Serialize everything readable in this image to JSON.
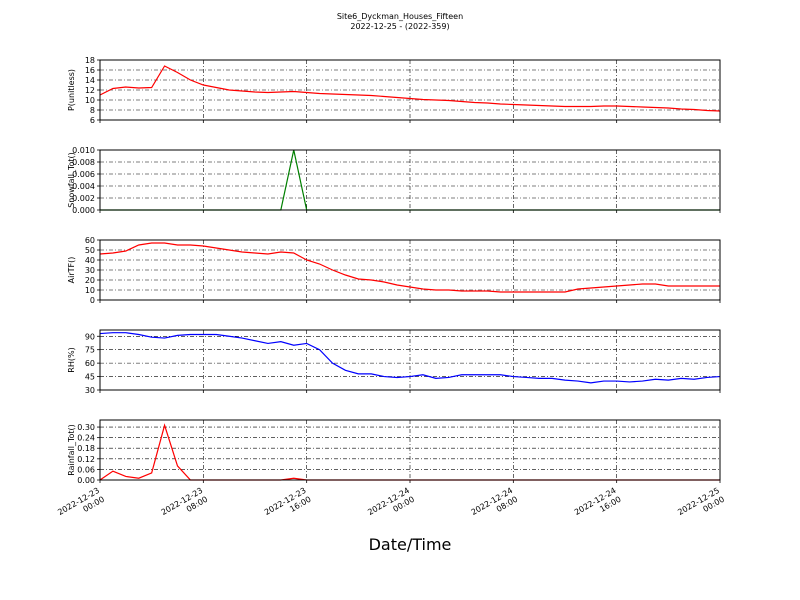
{
  "chart_data": [
    {
      "type": "line",
      "title": "Site6_Dyckman_Houses_Fifteen",
      "subtitle": "2022-12-25 - (2022-359)",
      "ylabel": "P(unitless)",
      "color": "#ff0000",
      "grid": true,
      "x": [
        "2022-12-23 00:00",
        "2022-12-23 01:00",
        "2022-12-23 02:00",
        "2022-12-23 03:00",
        "2022-12-23 04:00",
        "2022-12-23 05:00",
        "2022-12-23 06:00",
        "2022-12-23 07:00",
        "2022-12-23 08:00",
        "2022-12-23 09:00",
        "2022-12-23 10:00",
        "2022-12-23 11:00",
        "2022-12-23 12:00",
        "2022-12-23 13:00",
        "2022-12-23 14:00",
        "2022-12-23 15:00",
        "2022-12-23 16:00",
        "2022-12-23 17:00",
        "2022-12-23 18:00",
        "2022-12-23 19:00",
        "2022-12-23 20:00",
        "2022-12-23 21:00",
        "2022-12-23 22:00",
        "2022-12-23 23:00",
        "2022-12-24 00:00",
        "2022-12-24 01:00",
        "2022-12-24 02:00",
        "2022-12-24 03:00",
        "2022-12-24 04:00",
        "2022-12-24 05:00",
        "2022-12-24 06:00",
        "2022-12-24 07:00",
        "2022-12-24 08:00",
        "2022-12-24 09:00",
        "2022-12-24 10:00",
        "2022-12-24 11:00",
        "2022-12-24 12:00",
        "2022-12-24 13:00",
        "2022-12-24 14:00",
        "2022-12-24 15:00",
        "2022-12-24 16:00",
        "2022-12-24 17:00",
        "2022-12-24 18:00",
        "2022-12-24 19:00",
        "2022-12-24 20:00",
        "2022-12-24 21:00",
        "2022-12-24 22:00",
        "2022-12-24 23:00",
        "2022-12-25 00:00"
      ],
      "values": [
        11,
        12.3,
        12.6,
        12.4,
        12.5,
        16.8,
        15.5,
        14,
        13,
        12.5,
        12,
        11.8,
        11.6,
        11.5,
        11.6,
        11.7,
        11.5,
        11.3,
        11.2,
        11.1,
        11,
        10.9,
        10.7,
        10.5,
        10.3,
        10.1,
        10,
        9.9,
        9.7,
        9.5,
        9.4,
        9.2,
        9.1,
        9,
        8.9,
        8.8,
        8.7,
        8.7,
        8.7,
        8.8,
        8.8,
        8.7,
        8.6,
        8.5,
        8.4,
        8.2,
        8.1,
        7.9,
        7.8
      ],
      "xlim": [
        "2022-12-23 00:00",
        "2022-12-25 00:00"
      ],
      "xticks": [
        "2022-12-23 00:00",
        "2022-12-23 08:00",
        "2022-12-23 16:00",
        "2022-12-24 00:00",
        "2022-12-24 08:00",
        "2022-12-24 16:00",
        "2022-12-25 00:00"
      ],
      "ylim": [
        6,
        18
      ],
      "yticks": [
        6,
        8,
        10,
        12,
        14,
        16,
        18
      ]
    },
    {
      "type": "line",
      "ylabel": "Snowfall_Tot()",
      "color": "#008000",
      "grid": true,
      "x": [
        "2022-12-23 00:00",
        "2022-12-23 01:00",
        "2022-12-23 02:00",
        "2022-12-23 03:00",
        "2022-12-23 04:00",
        "2022-12-23 05:00",
        "2022-12-23 06:00",
        "2022-12-23 07:00",
        "2022-12-23 08:00",
        "2022-12-23 09:00",
        "2022-12-23 10:00",
        "2022-12-23 11:00",
        "2022-12-23 12:00",
        "2022-12-23 13:00",
        "2022-12-23 14:00",
        "2022-12-23 15:00",
        "2022-12-23 16:00",
        "2022-12-23 17:00",
        "2022-12-23 18:00",
        "2022-12-23 19:00",
        "2022-12-23 20:00",
        "2022-12-23 21:00",
        "2022-12-23 22:00",
        "2022-12-23 23:00",
        "2022-12-24 00:00",
        "2022-12-24 01:00",
        "2022-12-24 02:00",
        "2022-12-24 03:00",
        "2022-12-24 04:00",
        "2022-12-24 05:00",
        "2022-12-24 06:00",
        "2022-12-24 07:00",
        "2022-12-24 08:00",
        "2022-12-24 09:00",
        "2022-12-24 10:00",
        "2022-12-24 11:00",
        "2022-12-24 12:00",
        "2022-12-24 13:00",
        "2022-12-24 14:00",
        "2022-12-24 15:00",
        "2022-12-24 16:00",
        "2022-12-24 17:00",
        "2022-12-24 18:00",
        "2022-12-24 19:00",
        "2022-12-24 20:00",
        "2022-12-24 21:00",
        "2022-12-24 22:00",
        "2022-12-24 23:00",
        "2022-12-25 00:00"
      ],
      "values": [
        0,
        0,
        0,
        0,
        0,
        0,
        0,
        0,
        0,
        0,
        0,
        0,
        0,
        0,
        0,
        0.01,
        0,
        0,
        0,
        0,
        0,
        0,
        0,
        0,
        0,
        0,
        0,
        0,
        0,
        0,
        0,
        0,
        0,
        0,
        0,
        0,
        0,
        0,
        0,
        0,
        0,
        0,
        0,
        0,
        0,
        0,
        0,
        0,
        0
      ],
      "xlim": [
        "2022-12-23 00:00",
        "2022-12-25 00:00"
      ],
      "xticks": [
        "2022-12-23 00:00",
        "2022-12-23 08:00",
        "2022-12-23 16:00",
        "2022-12-24 00:00",
        "2022-12-24 08:00",
        "2022-12-24 16:00",
        "2022-12-25 00:00"
      ],
      "ylim": [
        0,
        0.01
      ],
      "yticks": [
        {
          "value": 0,
          "label": "0.000"
        },
        {
          "value": 0.002,
          "label": "0.002"
        },
        {
          "value": 0.004,
          "label": "0.004"
        },
        {
          "value": 0.006,
          "label": "0.006"
        },
        {
          "value": 0.008,
          "label": "0.008"
        },
        {
          "value": 0.01,
          "label": "0.010"
        }
      ]
    },
    {
      "type": "line",
      "ylabel": "AirTF()",
      "color": "#ff0000",
      "grid": true,
      "x": [
        "2022-12-23 00:00",
        "2022-12-23 01:00",
        "2022-12-23 02:00",
        "2022-12-23 03:00",
        "2022-12-23 04:00",
        "2022-12-23 05:00",
        "2022-12-23 06:00",
        "2022-12-23 07:00",
        "2022-12-23 08:00",
        "2022-12-23 09:00",
        "2022-12-23 10:00",
        "2022-12-23 11:00",
        "2022-12-23 12:00",
        "2022-12-23 13:00",
        "2022-12-23 14:00",
        "2022-12-23 15:00",
        "2022-12-23 16:00",
        "2022-12-23 17:00",
        "2022-12-23 18:00",
        "2022-12-23 19:00",
        "2022-12-23 20:00",
        "2022-12-23 21:00",
        "2022-12-23 22:00",
        "2022-12-23 23:00",
        "2022-12-24 00:00",
        "2022-12-24 01:00",
        "2022-12-24 02:00",
        "2022-12-24 03:00",
        "2022-12-24 04:00",
        "2022-12-24 05:00",
        "2022-12-24 06:00",
        "2022-12-24 07:00",
        "2022-12-24 08:00",
        "2022-12-24 09:00",
        "2022-12-24 10:00",
        "2022-12-24 11:00",
        "2022-12-24 12:00",
        "2022-12-24 13:00",
        "2022-12-24 14:00",
        "2022-12-24 15:00",
        "2022-12-24 16:00",
        "2022-12-24 17:00",
        "2022-12-24 18:00",
        "2022-12-24 19:00",
        "2022-12-24 20:00",
        "2022-12-24 21:00",
        "2022-12-24 22:00",
        "2022-12-24 23:00",
        "2022-12-25 00:00"
      ],
      "values": [
        46,
        47,
        49,
        55,
        57,
        57,
        55,
        55,
        54,
        52,
        50,
        48,
        47,
        46,
        48,
        47,
        40,
        36,
        30,
        25,
        21,
        20,
        18,
        15,
        13,
        11,
        10,
        10,
        9,
        9,
        9,
        8,
        8,
        8,
        8,
        8,
        8,
        11,
        12,
        13,
        14,
        15,
        16,
        16,
        14,
        14,
        14,
        14,
        14
      ],
      "xlim": [
        "2022-12-23 00:00",
        "2022-12-25 00:00"
      ],
      "xticks": [
        "2022-12-23 00:00",
        "2022-12-23 08:00",
        "2022-12-23 16:00",
        "2022-12-24 00:00",
        "2022-12-24 08:00",
        "2022-12-24 16:00",
        "2022-12-25 00:00"
      ],
      "ylim": [
        0,
        60
      ],
      "yticks": [
        0,
        10,
        20,
        30,
        40,
        50,
        60
      ]
    },
    {
      "type": "line",
      "ylabel": "RH(%)",
      "color": "#0000ff",
      "grid": true,
      "x": [
        "2022-12-23 00:00",
        "2022-12-23 01:00",
        "2022-12-23 02:00",
        "2022-12-23 03:00",
        "2022-12-23 04:00",
        "2022-12-23 05:00",
        "2022-12-23 06:00",
        "2022-12-23 07:00",
        "2022-12-23 08:00",
        "2022-12-23 09:00",
        "2022-12-23 10:00",
        "2022-12-23 11:00",
        "2022-12-23 12:00",
        "2022-12-23 13:00",
        "2022-12-23 14:00",
        "2022-12-23 15:00",
        "2022-12-23 16:00",
        "2022-12-23 17:00",
        "2022-12-23 18:00",
        "2022-12-23 19:00",
        "2022-12-23 20:00",
        "2022-12-23 21:00",
        "2022-12-23 22:00",
        "2022-12-23 23:00",
        "2022-12-24 00:00",
        "2022-12-24 01:00",
        "2022-12-24 02:00",
        "2022-12-24 03:00",
        "2022-12-24 04:00",
        "2022-12-24 05:00",
        "2022-12-24 06:00",
        "2022-12-24 07:00",
        "2022-12-24 08:00",
        "2022-12-24 09:00",
        "2022-12-24 10:00",
        "2022-12-24 11:00",
        "2022-12-24 12:00",
        "2022-12-24 13:00",
        "2022-12-24 14:00",
        "2022-12-24 15:00",
        "2022-12-24 16:00",
        "2022-12-24 17:00",
        "2022-12-24 18:00",
        "2022-12-24 19:00",
        "2022-12-24 20:00",
        "2022-12-24 21:00",
        "2022-12-24 22:00",
        "2022-12-24 23:00",
        "2022-12-25 00:00"
      ],
      "values": [
        93,
        94,
        94,
        92,
        89,
        88,
        91,
        92,
        92,
        92,
        90,
        88,
        85,
        82,
        84,
        80,
        82,
        75,
        60,
        52,
        48,
        48,
        45,
        44,
        45,
        47,
        43,
        44,
        47,
        47,
        47,
        47,
        45,
        44,
        43,
        43,
        41,
        40,
        38,
        40,
        40,
        39,
        40,
        42,
        41,
        43,
        42,
        44,
        45
      ],
      "xlim": [
        "2022-12-23 00:00",
        "2022-12-25 00:00"
      ],
      "xticks": [
        "2022-12-23 00:00",
        "2022-12-23 08:00",
        "2022-12-23 16:00",
        "2022-12-24 00:00",
        "2022-12-24 08:00",
        "2022-12-24 16:00",
        "2022-12-25 00:00"
      ],
      "ylim": [
        30,
        97
      ],
      "yticks": [
        30,
        45,
        60,
        75,
        90
      ]
    },
    {
      "type": "line",
      "ylabel": "Rainfall_Tot()",
      "xlabel": "Date/Time",
      "color": "#ff0000",
      "grid": true,
      "x": [
        "2022-12-23 00:00",
        "2022-12-23 01:00",
        "2022-12-23 02:00",
        "2022-12-23 03:00",
        "2022-12-23 04:00",
        "2022-12-23 05:00",
        "2022-12-23 06:00",
        "2022-12-23 07:00",
        "2022-12-23 08:00",
        "2022-12-23 09:00",
        "2022-12-23 10:00",
        "2022-12-23 11:00",
        "2022-12-23 12:00",
        "2022-12-23 13:00",
        "2022-12-23 14:00",
        "2022-12-23 15:00",
        "2022-12-23 16:00",
        "2022-12-23 17:00",
        "2022-12-23 18:00",
        "2022-12-23 19:00",
        "2022-12-23 20:00",
        "2022-12-23 21:00",
        "2022-12-23 22:00",
        "2022-12-23 23:00",
        "2022-12-24 00:00",
        "2022-12-24 01:00",
        "2022-12-24 02:00",
        "2022-12-24 03:00",
        "2022-12-24 04:00",
        "2022-12-24 05:00",
        "2022-12-24 06:00",
        "2022-12-24 07:00",
        "2022-12-24 08:00",
        "2022-12-24 09:00",
        "2022-12-24 10:00",
        "2022-12-24 11:00",
        "2022-12-24 12:00",
        "2022-12-24 13:00",
        "2022-12-24 14:00",
        "2022-12-24 15:00",
        "2022-12-24 16:00",
        "2022-12-24 17:00",
        "2022-12-24 18:00",
        "2022-12-24 19:00",
        "2022-12-24 20:00",
        "2022-12-24 21:00",
        "2022-12-24 22:00",
        "2022-12-24 23:00",
        "2022-12-25 00:00"
      ],
      "values": [
        0,
        0.05,
        0.02,
        0.01,
        0.04,
        0.31,
        0.08,
        0,
        0,
        0,
        0,
        0,
        0,
        0,
        0,
        0.01,
        0,
        0,
        0,
        0,
        0,
        0,
        0,
        0,
        0,
        0,
        0,
        0,
        0,
        0,
        0,
        0,
        0,
        0,
        0,
        0,
        0,
        0,
        0,
        0,
        0,
        0,
        0,
        0,
        0,
        0,
        0,
        0,
        0
      ],
      "xlim": [
        "2022-12-23 00:00",
        "2022-12-25 00:00"
      ],
      "xticks": [
        "2022-12-23 00:00",
        "2022-12-23 08:00",
        "2022-12-23 16:00",
        "2022-12-24 00:00",
        "2022-12-24 08:00",
        "2022-12-24 16:00",
        "2022-12-25 00:00"
      ],
      "ylim": [
        0,
        0.34
      ],
      "yticks": [
        {
          "value": 0,
          "label": "0.00"
        },
        {
          "value": 0.06,
          "label": "0.06"
        },
        {
          "value": 0.12,
          "label": "0.12"
        },
        {
          "value": 0.18,
          "label": "0.18"
        },
        {
          "value": 0.24,
          "label": "0.24"
        },
        {
          "value": 0.3,
          "label": "0.30"
        }
      ]
    }
  ]
}
